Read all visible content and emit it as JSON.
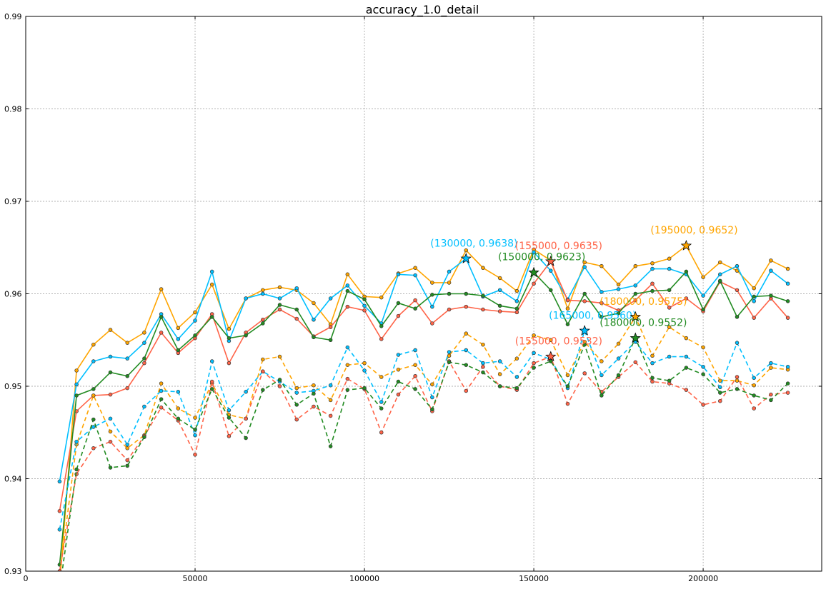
{
  "chart_data": {
    "type": "line",
    "title": "accuracy_1.0_detail",
    "xlabel": "",
    "ylabel": "",
    "xlim": [
      0,
      235000
    ],
    "ylim": [
      0.93,
      0.99
    ],
    "grid": true,
    "x_ticks": [
      0,
      50000,
      100000,
      150000,
      200000
    ],
    "x_tick_labels": [
      "0",
      "50000",
      "100000",
      "150000",
      "200000"
    ],
    "y_ticks": [
      0.93,
      0.94,
      0.95,
      0.96,
      0.97,
      0.98,
      0.99
    ],
    "y_tick_labels": [
      "0.93",
      "0.94",
      "0.95",
      "0.96",
      "0.97",
      "0.98",
      "0.99"
    ],
    "x": [
      10000,
      15000,
      20000,
      25000,
      30000,
      35000,
      40000,
      45000,
      50000,
      55000,
      60000,
      65000,
      70000,
      75000,
      80000,
      85000,
      90000,
      95000,
      100000,
      105000,
      110000,
      115000,
      120000,
      125000,
      130000,
      135000,
      140000,
      145000,
      150000,
      155000,
      160000,
      165000,
      170000,
      175000,
      180000,
      185000,
      190000,
      195000,
      200000,
      205000,
      210000,
      215000,
      220000,
      225000
    ],
    "series": [
      {
        "color": "#ffa500",
        "dash": false,
        "values": [
          0.9285,
          0.9517,
          0.9545,
          0.9561,
          0.9547,
          0.9558,
          0.9605,
          0.9563,
          0.958,
          0.961,
          0.9562,
          0.9595,
          0.9604,
          0.9607,
          0.9604,
          0.959,
          0.9567,
          0.9621,
          0.9597,
          0.9596,
          0.9622,
          0.9628,
          0.9612,
          0.9612,
          0.9647,
          0.9628,
          0.9617,
          0.9603,
          0.9648,
          0.9636,
          0.9584,
          0.9634,
          0.963,
          0.961,
          0.963,
          0.9633,
          0.9638,
          0.9652,
          0.9618,
          0.9634,
          0.9625,
          0.9606,
          0.9636,
          0.9627
        ]
      },
      {
        "color": "#00bfff",
        "dash": false,
        "values": [
          0.9397,
          0.9502,
          0.9527,
          0.9532,
          0.953,
          0.9547,
          0.9578,
          0.9551,
          0.9571,
          0.9624,
          0.9549,
          0.9595,
          0.96,
          0.9595,
          0.9606,
          0.9572,
          0.9595,
          0.9609,
          0.9587,
          0.9568,
          0.9621,
          0.962,
          0.9586,
          0.9624,
          0.9638,
          0.9597,
          0.9604,
          0.9592,
          0.9645,
          0.9625,
          0.9594,
          0.9629,
          0.9602,
          0.9605,
          0.9609,
          0.9627,
          0.9627,
          0.9621,
          0.9598,
          0.9621,
          0.963,
          0.9592,
          0.9625,
          0.9611
        ]
      },
      {
        "color": "#ff6347",
        "dash": false,
        "values": [
          0.9365,
          0.9473,
          0.949,
          0.9491,
          0.9498,
          0.9525,
          0.9558,
          0.9536,
          0.9552,
          0.9578,
          0.9525,
          0.9558,
          0.9572,
          0.9583,
          0.9573,
          0.9554,
          0.9564,
          0.9586,
          0.9582,
          0.9551,
          0.9576,
          0.9593,
          0.9568,
          0.9583,
          0.9586,
          0.9583,
          0.9581,
          0.958,
          0.9611,
          0.9635,
          0.9593,
          0.9592,
          0.959,
          0.9582,
          0.9593,
          0.9611,
          0.9585,
          0.9595,
          0.9581,
          0.9613,
          0.9604,
          0.9574,
          0.9595,
          0.9574
        ]
      },
      {
        "color": "#228b22",
        "dash": false,
        "values": [
          0.9307,
          0.949,
          0.9497,
          0.9515,
          0.9511,
          0.953,
          0.9575,
          0.9539,
          0.9555,
          0.9575,
          0.9552,
          0.9555,
          0.9568,
          0.9588,
          0.9583,
          0.9553,
          0.955,
          0.9603,
          0.9594,
          0.9565,
          0.959,
          0.9584,
          0.9599,
          0.96,
          0.96,
          0.9598,
          0.9587,
          0.9584,
          0.9623,
          0.9604,
          0.9567,
          0.96,
          0.9575,
          0.9579,
          0.96,
          0.9603,
          0.9604,
          0.9624,
          0.9583,
          0.9614,
          0.9575,
          0.9597,
          0.9598,
          0.9592
        ]
      },
      {
        "color": "#ffa500",
        "dash": true,
        "values": [
          0.9295,
          0.9437,
          0.949,
          0.9451,
          0.9433,
          0.9447,
          0.9503,
          0.9476,
          0.9466,
          0.9503,
          0.9469,
          0.9465,
          0.9529,
          0.9532,
          0.9498,
          0.9501,
          0.9485,
          0.9523,
          0.9525,
          0.951,
          0.9518,
          0.9523,
          0.9502,
          0.9533,
          0.9557,
          0.9545,
          0.9513,
          0.953,
          0.9555,
          0.955,
          0.9512,
          0.9548,
          0.9527,
          0.9546,
          0.9575,
          0.9533,
          0.9564,
          0.9552,
          0.9542,
          0.9506,
          0.9506,
          0.9501,
          0.952,
          0.9518
        ]
      },
      {
        "color": "#00bfff",
        "dash": true,
        "values": [
          0.9345,
          0.944,
          0.9456,
          0.9465,
          0.9437,
          0.9478,
          0.9495,
          0.9494,
          0.9447,
          0.9527,
          0.9474,
          0.9494,
          0.9516,
          0.9505,
          0.9493,
          0.9495,
          0.9501,
          0.9542,
          0.9517,
          0.9483,
          0.9534,
          0.9539,
          0.9488,
          0.9537,
          0.9539,
          0.9525,
          0.9527,
          0.951,
          0.9536,
          0.9529,
          0.9498,
          0.956,
          0.9512,
          0.953,
          0.9548,
          0.9525,
          0.9532,
          0.9532,
          0.9521,
          0.9499,
          0.9547,
          0.9509,
          0.9525,
          0.9521
        ]
      },
      {
        "color": "#ff6347",
        "dash": true,
        "values": [
          0.93,
          0.9405,
          0.9433,
          0.944,
          0.942,
          0.9446,
          0.9477,
          0.9463,
          0.9426,
          0.9505,
          0.9446,
          0.9465,
          0.9516,
          0.95,
          0.9464,
          0.9478,
          0.9468,
          0.9508,
          0.9497,
          0.945,
          0.9491,
          0.9511,
          0.9473,
          0.9527,
          0.9495,
          0.9521,
          0.95,
          0.9496,
          0.9525,
          0.9532,
          0.9481,
          0.9514,
          0.9494,
          0.951,
          0.9526,
          0.9505,
          0.9503,
          0.9496,
          0.948,
          0.9484,
          0.951,
          0.9476,
          0.9491,
          0.9493
        ]
      },
      {
        "color": "#228b22",
        "dash": true,
        "values": [
          0.928,
          0.941,
          0.9464,
          0.9412,
          0.9414,
          0.9445,
          0.9486,
          0.9465,
          0.9453,
          0.9497,
          0.9466,
          0.9444,
          0.9496,
          0.9507,
          0.948,
          0.9492,
          0.9435,
          0.9496,
          0.9498,
          0.9476,
          0.9505,
          0.9497,
          0.9475,
          0.9526,
          0.9523,
          0.9515,
          0.95,
          0.9498,
          0.952,
          0.9527,
          0.95,
          0.9545,
          0.949,
          0.9512,
          0.9552,
          0.9509,
          0.9506,
          0.952,
          0.9513,
          0.9493,
          0.9497,
          0.949,
          0.9485,
          0.9503
        ]
      }
    ],
    "annotations": [
      {
        "x": 130000,
        "y": 0.9638,
        "text": "(130000, 0.9638)",
        "color": "#00bfff"
      },
      {
        "x": 155000,
        "y": 0.9635,
        "text": "(155000, 0.9635)",
        "color": "#ff6347"
      },
      {
        "x": 150000,
        "y": 0.9623,
        "text": "(150000, 0.9623)",
        "color": "#228b22"
      },
      {
        "x": 195000,
        "y": 0.9652,
        "text": "(195000, 0.9652)",
        "color": "#ffa500"
      },
      {
        "x": 165000,
        "y": 0.956,
        "text": "(165000, 0.9560)",
        "color": "#00bfff"
      },
      {
        "x": 180000,
        "y": 0.9575,
        "text": "(180000, 0.9575)",
        "color": "#ffa500"
      },
      {
        "x": 180000,
        "y": 0.9552,
        "text": "(180000, 0.9552)",
        "color": "#228b22"
      },
      {
        "x": 155000,
        "y": 0.9532,
        "text": "(155000, 0.9532)",
        "color": "#ff6347"
      }
    ]
  }
}
